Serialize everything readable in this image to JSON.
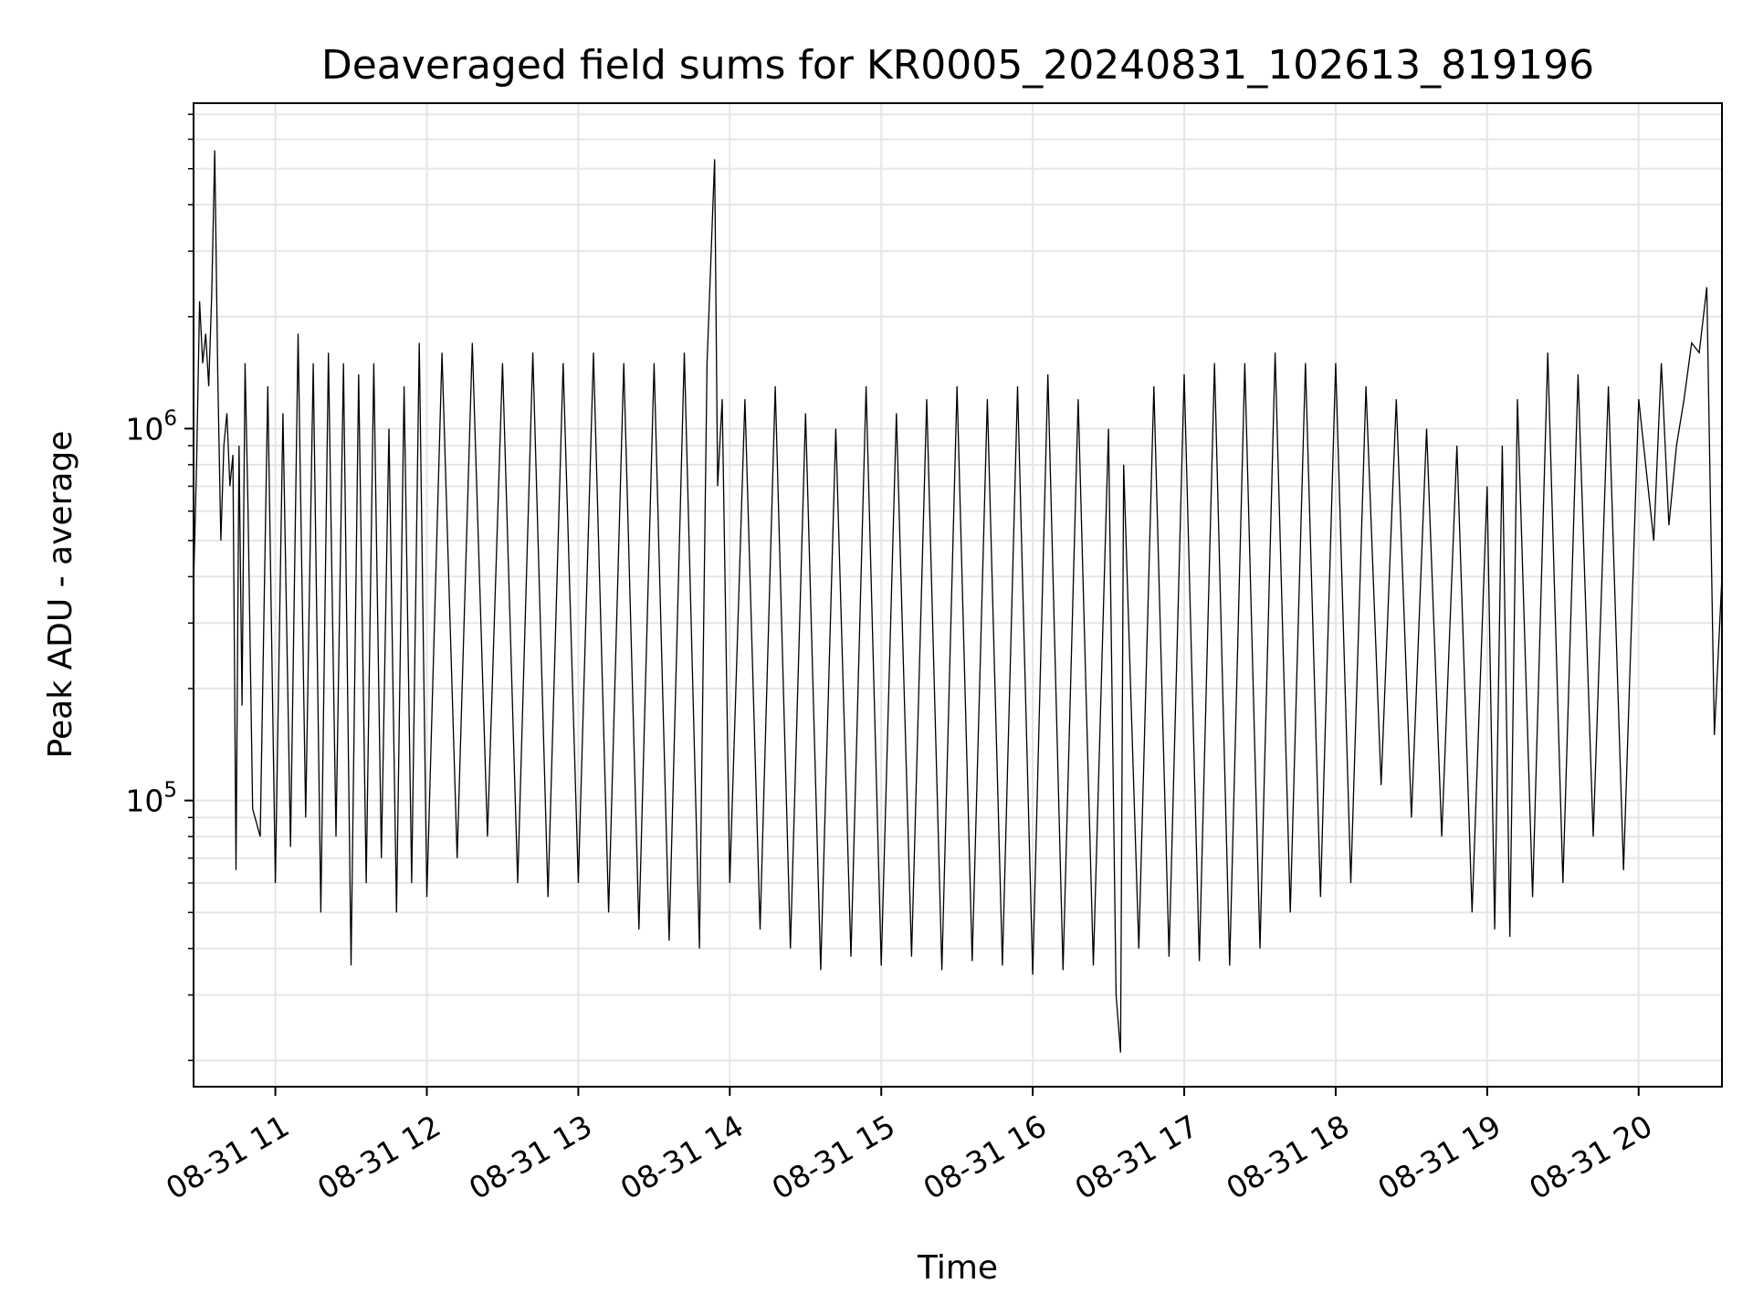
{
  "chart_data": {
    "type": "line",
    "title": "Deaveraged field sums for KR0005_20240831_102613_819196",
    "xlabel": "Time",
    "ylabel": "Peak ADU - average",
    "yscale": "log",
    "grid": true,
    "line_color": "#000000",
    "grid_color": "#e6e6e6",
    "x_range_hours": [
      10.46,
      20.55
    ],
    "ylim": [
      17000,
      7500000
    ],
    "x_ticks": [
      {
        "hour": 11,
        "label": "08-31 11"
      },
      {
        "hour": 12,
        "label": "08-31 12"
      },
      {
        "hour": 13,
        "label": "08-31 13"
      },
      {
        "hour": 14,
        "label": "08-31 14"
      },
      {
        "hour": 15,
        "label": "08-31 15"
      },
      {
        "hour": 16,
        "label": "08-31 16"
      },
      {
        "hour": 17,
        "label": "08-31 17"
      },
      {
        "hour": 18,
        "label": "08-31 18"
      },
      {
        "hour": 19,
        "label": "08-31 19"
      },
      {
        "hour": 20,
        "label": "08-31 20"
      }
    ],
    "y_ticks": [
      {
        "value": 100000,
        "base": "10",
        "exp": "5"
      },
      {
        "value": 1000000,
        "base": "10",
        "exp": "6"
      }
    ],
    "series": [
      {
        "x_hours": [
          10.46,
          10.48,
          10.5,
          10.52,
          10.54,
          10.56,
          10.58,
          10.6,
          10.62,
          10.64,
          10.66,
          10.68,
          10.7,
          10.72,
          10.74,
          10.76,
          10.78,
          10.8,
          10.82,
          10.85,
          10.9,
          10.95,
          11.0,
          11.05,
          11.1,
          11.15,
          11.2,
          11.25,
          11.3,
          11.35,
          11.4,
          11.45,
          11.5,
          11.55,
          11.6,
          11.65,
          11.7,
          11.75,
          11.8,
          11.85,
          11.9,
          11.95,
          12.0,
          12.1,
          12.2,
          12.3,
          12.4,
          12.5,
          12.6,
          12.7,
          12.8,
          12.9,
          13.0,
          13.1,
          13.2,
          13.3,
          13.4,
          13.5,
          13.6,
          13.7,
          13.8,
          13.85,
          13.9,
          13.92,
          13.95,
          14.0,
          14.1,
          14.2,
          14.3,
          14.4,
          14.5,
          14.6,
          14.7,
          14.8,
          14.9,
          15.0,
          15.1,
          15.2,
          15.3,
          15.4,
          15.5,
          15.6,
          15.7,
          15.8,
          15.9,
          16.0,
          16.1,
          16.2,
          16.3,
          16.4,
          16.5,
          16.55,
          16.58,
          16.6,
          16.7,
          16.8,
          16.9,
          17.0,
          17.1,
          17.2,
          17.3,
          17.4,
          17.5,
          17.6,
          17.7,
          17.8,
          17.9,
          18.0,
          18.1,
          18.2,
          18.3,
          18.4,
          18.5,
          18.6,
          18.7,
          18.8,
          18.9,
          19.0,
          19.05,
          19.1,
          19.15,
          19.2,
          19.3,
          19.4,
          19.5,
          19.6,
          19.7,
          19.8,
          19.9,
          20.0,
          20.1,
          20.15,
          20.2,
          20.25,
          20.3,
          20.35,
          20.4,
          20.45,
          20.5,
          20.55
        ],
        "values": [
          380000,
          800000,
          2200000,
          1500000,
          1800000,
          1300000,
          2300000,
          5600000,
          1400000,
          500000,
          900000,
          1100000,
          700000,
          850000,
          65000,
          900000,
          180000,
          1500000,
          600000,
          95000,
          80000,
          1300000,
          60000,
          1100000,
          75000,
          1800000,
          90000,
          1500000,
          50000,
          1600000,
          80000,
          1500000,
          36000,
          1400000,
          60000,
          1500000,
          70000,
          1000000,
          50000,
          1300000,
          60000,
          1700000,
          55000,
          1600000,
          70000,
          1700000,
          80000,
          1500000,
          60000,
          1600000,
          55000,
          1500000,
          60000,
          1600000,
          50000,
          1500000,
          45000,
          1500000,
          42000,
          1600000,
          40000,
          1500000,
          5300000,
          700000,
          1200000,
          60000,
          1200000,
          45000,
          1300000,
          40000,
          1100000,
          35000,
          1000000,
          38000,
          1300000,
          36000,
          1100000,
          38000,
          1200000,
          35000,
          1300000,
          37000,
          1200000,
          36000,
          1300000,
          34000,
          1400000,
          35000,
          1200000,
          36000,
          1000000,
          30000,
          21000,
          800000,
          40000,
          1300000,
          38000,
          1400000,
          37000,
          1500000,
          36000,
          1500000,
          40000,
          1600000,
          50000,
          1500000,
          55000,
          1500000,
          60000,
          1300000,
          110000,
          1200000,
          90000,
          1000000,
          80000,
          900000,
          50000,
          700000,
          45000,
          900000,
          43000,
          1200000,
          55000,
          1600000,
          60000,
          1400000,
          80000,
          1300000,
          65000,
          1200000,
          500000,
          1500000,
          550000,
          900000,
          1200000,
          1700000,
          1600000,
          2400000,
          150000,
          400000
        ]
      }
    ]
  }
}
